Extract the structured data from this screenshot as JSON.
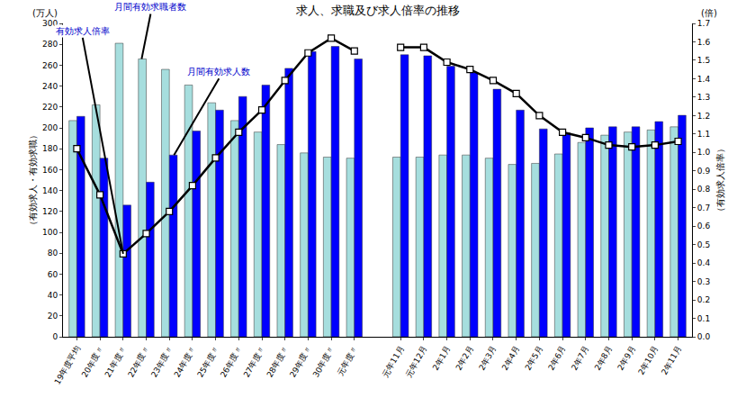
{
  "chart_data": {
    "type": "bar",
    "title": "求人、求職及び求人倍率の推移",
    "ylabel": "（有効求人・有効求職）",
    "y2label": "（有効求人倍率）",
    "annotations": [
      "(万人)",
      "(倍)"
    ],
    "categories": [
      "19年度平均",
      "20年度〃",
      "21年度〃",
      "22年度〃",
      "23年度〃",
      "24年度〃",
      "25年度〃",
      "26年度〃",
      "27年度〃",
      "28年度〃",
      "29年度〃",
      "30年度〃",
      "元年度〃",
      null,
      "元年11月",
      "元年12月",
      "2年1月",
      "2年2月",
      "2年3月",
      "2年4月",
      "2年5月",
      "2年6月",
      "2年7月",
      "2年8月",
      "2年9月",
      "2年10月",
      "2年11月"
    ],
    "series": [
      {
        "name": "月間有効求職者数",
        "type": "bar",
        "color": "#a6dede",
        "values": [
          207,
          222,
          281,
          266,
          256,
          241,
          224,
          207,
          196,
          184,
          176,
          172,
          171,
          null,
          172,
          172,
          174,
          174,
          171,
          165,
          166,
          175,
          186,
          193,
          196,
          198,
          201
        ]
      },
      {
        "name": "月間有効求人数",
        "type": "bar",
        "color": "#0000ff",
        "values": [
          211,
          171,
          126,
          148,
          174,
          197,
          217,
          230,
          241,
          257,
          273,
          278,
          266,
          null,
          270,
          269,
          259,
          253,
          237,
          217,
          199,
          195,
          200,
          201,
          201,
          206,
          212
        ]
      },
      {
        "name": "有効求人倍率",
        "type": "line",
        "axis": "y2",
        "color": "#000000",
        "marker": "square",
        "values": [
          1.02,
          0.77,
          0.45,
          0.56,
          0.68,
          0.82,
          0.97,
          1.11,
          1.23,
          1.39,
          1.54,
          1.62,
          1.55,
          null,
          1.57,
          1.57,
          1.49,
          1.45,
          1.39,
          1.32,
          1.2,
          1.11,
          1.08,
          1.04,
          1.03,
          1.04,
          1.06
        ]
      }
    ],
    "ylim": [
      0,
      300
    ],
    "yticks": [
      0,
      20,
      40,
      60,
      80,
      100,
      120,
      140,
      160,
      180,
      200,
      220,
      240,
      260,
      280,
      300
    ],
    "y2lim": [
      0,
      1.7
    ],
    "y2ticks": [
      {
        "value": 0,
        "label": "0.0"
      },
      0.1,
      0.2,
      0.3,
      0.4,
      0.5,
      0.6,
      0.7,
      0.8,
      0.9,
      {
        "value": 1,
        "label": "1.0"
      },
      1.1,
      1.2,
      1.3,
      1.4,
      1.5,
      1.6,
      1.7
    ],
    "grid": false
  }
}
